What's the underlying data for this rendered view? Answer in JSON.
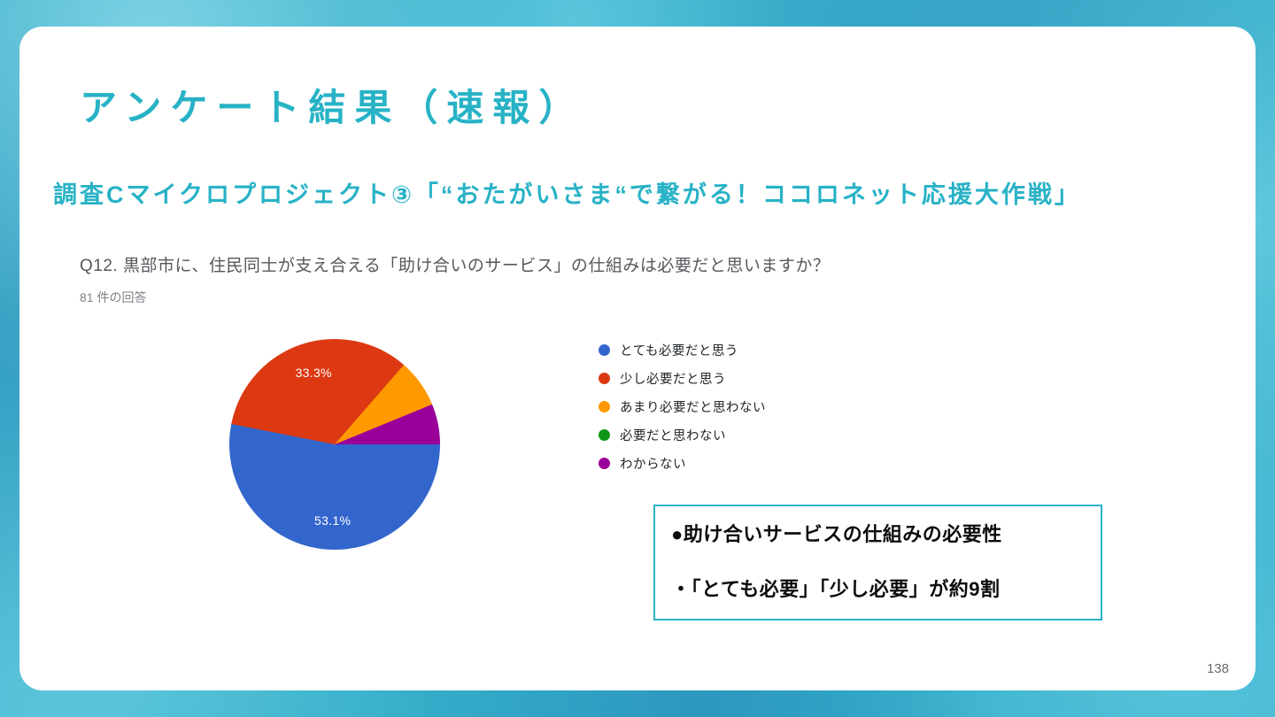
{
  "slide": {
    "title": "アンケート結果（速報）",
    "subtitle": "調査Cマイクロプロジェクト③「“おたがいさま“で繋がる！ココロネット応援大作戦」",
    "page_number": "138"
  },
  "survey": {
    "question": "Q12. 黒部市に、住民同士が支え合える「助け合いのサービス」の仕組みは必要だと思いますか？",
    "response_count": "81 件の回答"
  },
  "chart_data": {
    "type": "pie",
    "title": "Q12. 黒部市に、住民同士が支え合える「助け合いのサービス」の仕組みは必要だと思いますか？",
    "response_count": 81,
    "labels": [
      "とても必要だと思う",
      "少し必要だと思う",
      "あまり必要だと思わない",
      "必要だと思わない",
      "わからない"
    ],
    "values": [
      53.1,
      33.3,
      7.4,
      0,
      6.2
    ],
    "colors": [
      "#3366cc",
      "#dc3912",
      "#ff9900",
      "#109618",
      "#990099"
    ],
    "value_labels": [
      "53.1%",
      "33.3%"
    ],
    "start_angle_deg": 90,
    "legend_position": "right"
  },
  "callout": {
    "heading": "●助け合いサービスの仕組みの必要性",
    "body": "・「とても必要」「少し必要」が約9割",
    "border_color": "#28b2c6"
  },
  "colors": {
    "accent_teal": "#28b2c6",
    "background_teal": "#35aec9",
    "card_background": "#ffffff"
  }
}
